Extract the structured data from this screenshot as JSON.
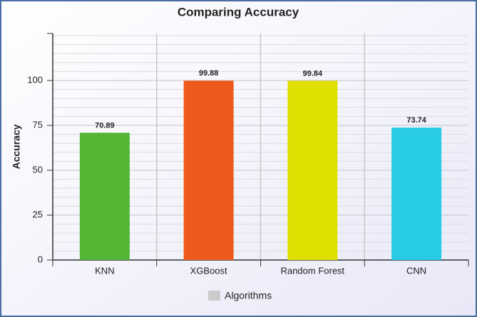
{
  "chart_data": {
    "type": "bar",
    "title": "Comparing Accuracy",
    "y_label": "Accuracy",
    "categories": [
      "KNN",
      "XGBoost",
      "Random Forest",
      "CNN"
    ],
    "series": [
      {
        "name": "Algorithms",
        "color": "#cccccc",
        "colors": [
          "#52b534",
          "#ee5a1c",
          "#dfe000",
          "#27cbe3"
        ],
        "values": [
          70.89,
          99.88,
          99.84,
          73.74
        ]
      }
    ],
    "ylim": [
      0,
      125
    ],
    "yticks": [
      0,
      25,
      50,
      75,
      100
    ],
    "grid": true,
    "legend": "bottom"
  }
}
